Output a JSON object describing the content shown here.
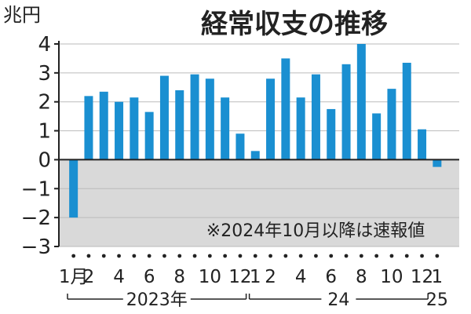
{
  "chart_data": {
    "type": "bar",
    "title": "経常収支の推移",
    "unit": "兆円",
    "note": "※2024年10月以降は速報値",
    "ylim": [
      -3,
      4
    ],
    "yticks": [
      {
        "value": 4,
        "label": "4"
      },
      {
        "value": 3,
        "label": "3"
      },
      {
        "value": 2,
        "label": "2"
      },
      {
        "value": 1,
        "label": "1"
      },
      {
        "value": 0,
        "label": "0"
      },
      {
        "value": -1,
        "label": "−1"
      },
      {
        "value": -2,
        "label": "−2"
      },
      {
        "value": -3,
        "label": "−3"
      }
    ],
    "categories": [
      "2023-01",
      "2023-02",
      "2023-03",
      "2023-04",
      "2023-05",
      "2023-06",
      "2023-07",
      "2023-08",
      "2023-09",
      "2023-10",
      "2023-11",
      "2023-12",
      "2024-01",
      "2024-02",
      "2024-03",
      "2024-04",
      "2024-05",
      "2024-06",
      "2024-07",
      "2024-08",
      "2024-09",
      "2024-10",
      "2024-11",
      "2024-12",
      "2025-01"
    ],
    "values": [
      -2.0,
      2.2,
      2.35,
      2.0,
      2.15,
      1.65,
      2.9,
      2.4,
      2.95,
      2.8,
      2.15,
      0.9,
      0.3,
      2.8,
      3.5,
      2.15,
      2.95,
      1.75,
      3.3,
      4.0,
      1.6,
      2.45,
      3.35,
      1.05,
      -0.25
    ],
    "xtick_labels": [
      {
        "index": 0,
        "label": "1月"
      },
      {
        "index": 1,
        "label": "2"
      },
      {
        "index": 3,
        "label": "4"
      },
      {
        "index": 5,
        "label": "6"
      },
      {
        "index": 7,
        "label": "8"
      },
      {
        "index": 9,
        "label": "10"
      },
      {
        "index": 11,
        "label": "12"
      },
      {
        "index": 12,
        "label": "1"
      },
      {
        "index": 13,
        "label": "2"
      },
      {
        "index": 15,
        "label": "4"
      },
      {
        "index": 17,
        "label": "6"
      },
      {
        "index": 19,
        "label": "8"
      },
      {
        "index": 21,
        "label": "10"
      },
      {
        "index": 23,
        "label": "12"
      },
      {
        "index": 24,
        "label": "1"
      }
    ],
    "year_groups": [
      {
        "label": "2023年",
        "start": 0,
        "end": 11
      },
      {
        "label": "24",
        "start": 12,
        "end": 23
      },
      {
        "label": "25",
        "start": 24,
        "end": 24
      }
    ],
    "colors": {
      "bar": "#1a8fd1",
      "negative_bg": "#d9d9d9",
      "axis": "#222222",
      "grid": "#bbbbbb"
    },
    "grid": true
  }
}
